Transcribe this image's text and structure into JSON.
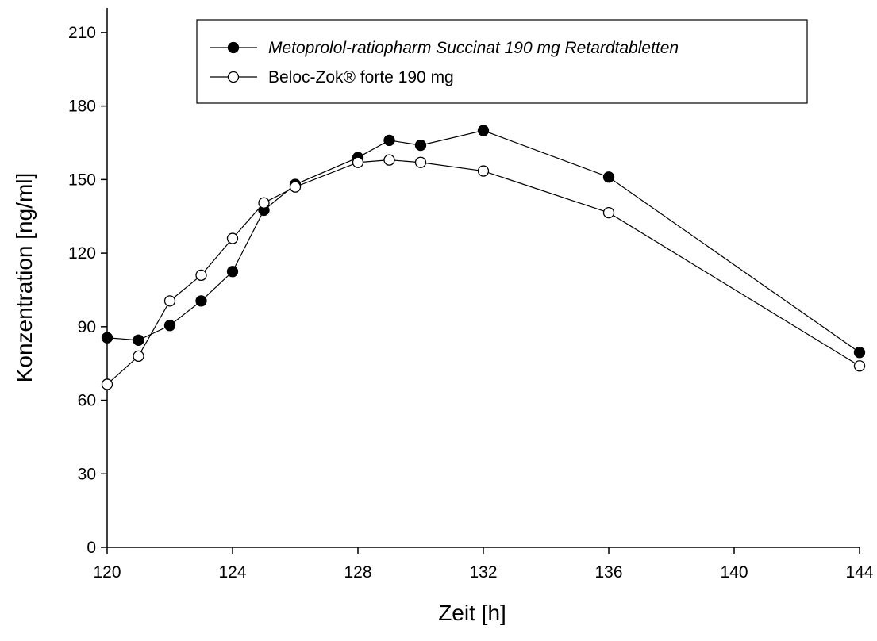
{
  "chart_data": {
    "type": "line",
    "title": "",
    "xlabel": "Zeit [h]",
    "ylabel": "Konzentration [ng/ml]",
    "xlim": [
      120,
      144
    ],
    "ylim": [
      0,
      220
    ],
    "xticks": [
      120,
      124,
      128,
      132,
      136,
      140,
      144
    ],
    "yticks": [
      0,
      30,
      60,
      90,
      120,
      150,
      180,
      210
    ],
    "grid": false,
    "legend_position": "top",
    "series": [
      {
        "name": "Metoprolol-ratiopharm Succinat 190 mg Retardtabletten",
        "marker": "filled-circle",
        "color": "#000000",
        "x": [
          120,
          121,
          122,
          123,
          124,
          125,
          126,
          128,
          129,
          130,
          132,
          136,
          144
        ],
        "y": [
          85.5,
          84.5,
          90.5,
          100.5,
          112.5,
          137.5,
          148,
          159,
          166,
          164,
          170,
          151,
          79.5
        ]
      },
      {
        "name": "Beloc-Zok® forte 190 mg",
        "marker": "open-circle",
        "color": "#000000",
        "x": [
          120,
          121,
          122,
          123,
          124,
          125,
          126,
          128,
          129,
          130,
          132,
          136,
          144
        ],
        "y": [
          66.5,
          78,
          100.5,
          111,
          126,
          140.5,
          147,
          157,
          158,
          157,
          153.5,
          136.5,
          74
        ]
      }
    ]
  }
}
